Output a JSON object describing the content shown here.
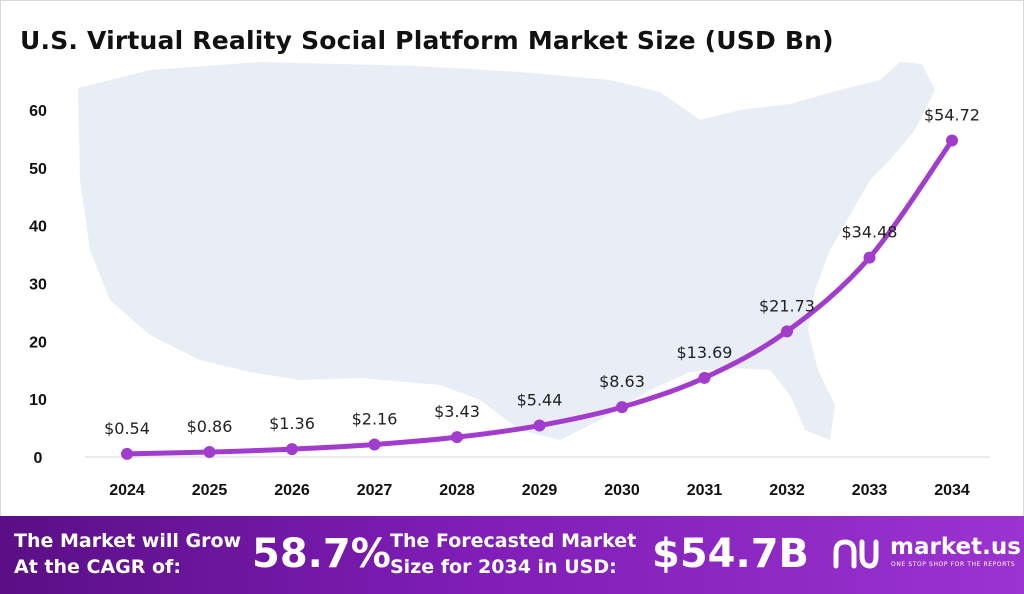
{
  "chart_data": {
    "type": "line",
    "title": "U.S. Virtual Reality Social Platform Market Size (USD Bn)",
    "categories": [
      "2024",
      "2025",
      "2026",
      "2027",
      "2028",
      "2029",
      "2030",
      "2031",
      "2032",
      "2033",
      "2034"
    ],
    "values": [
      0.54,
      0.86,
      1.36,
      2.16,
      3.43,
      5.44,
      8.63,
      13.69,
      21.73,
      34.48,
      54.72
    ],
    "data_labels": [
      "$0.54",
      "$0.86",
      "$1.36",
      "$2.16",
      "$3.43",
      "$5.44",
      "$8.63",
      "$13.69",
      "$21.73",
      "$34.48",
      "$54.72"
    ],
    "yticks": [
      0,
      10,
      20,
      30,
      40,
      50,
      60
    ],
    "ylim": [
      0,
      60
    ],
    "xlabel": "",
    "ylabel": "",
    "grid": false,
    "series_color": "#a23ccd",
    "background": "map of the United States"
  },
  "footer": {
    "cagr_text": "The Market will Grow\nAt the CAGR of:",
    "cagr_value": "58.7%",
    "forecast_text": "The Forecasted Market\nSize for 2034 in USD:",
    "forecast_value": "$54.7B",
    "brand": "market.us",
    "tagline": "ONE STOP SHOP FOR THE REPORTS"
  },
  "colors": {
    "line": "#a23ccd",
    "footer_start": "#5a0f86",
    "footer_end": "#9b33d0",
    "map": "#e9eef6"
  }
}
